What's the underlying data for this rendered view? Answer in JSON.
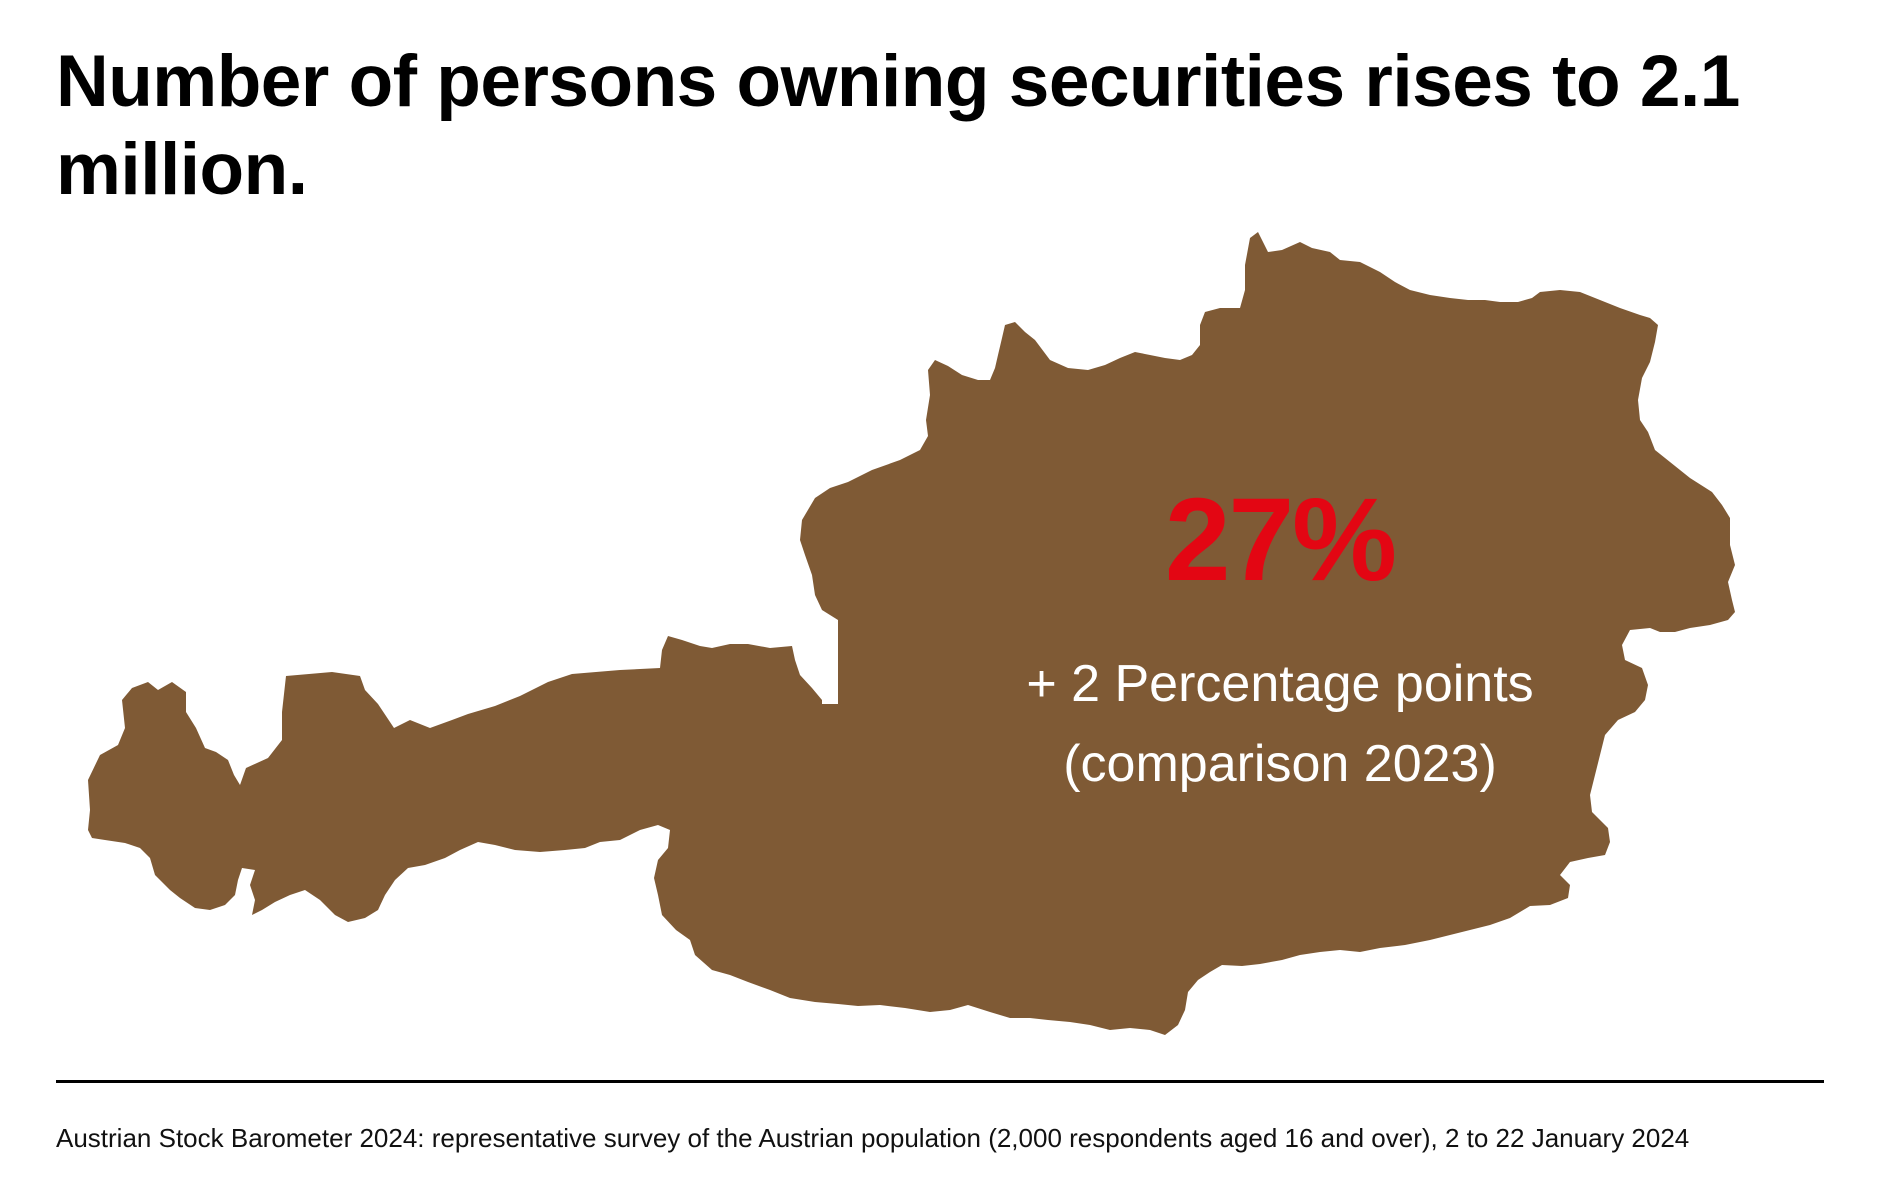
{
  "title": "Number of persons owning securities rises to 2.1 million.",
  "map": {
    "icon": "austria-map-silhouette",
    "fill_color": "#7f5a35"
  },
  "highlight": {
    "value": "27%",
    "color": "#e30613",
    "change_line1": "+ 2 Percentage points",
    "change_line2": "(comparison 2023)"
  },
  "footer": {
    "source": "Austrian Stock Barometer 2024: representative survey of the Austrian population (2,000 respondents aged 16 and over), 2 to 22 January 2024"
  }
}
